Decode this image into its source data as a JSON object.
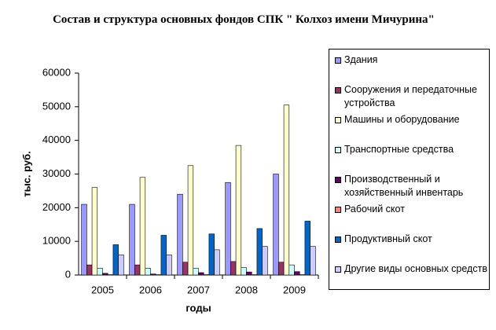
{
  "chart_data": {
    "type": "bar",
    "title": "Состав и структура  основных фондов СПК \"  Колхоз имени Мичурина\"",
    "y_label": "тыс. руб.",
    "x_label": "годы",
    "categories": [
      "2005",
      "2006",
      "2007",
      "2008",
      "2009"
    ],
    "series": [
      {
        "name": "Здания",
        "color": "#9999FF",
        "values": [
          21000,
          21000,
          24000,
          27500,
          30000
        ]
      },
      {
        "name": "Сооружения и передаточные устройства",
        "color": "#993366",
        "values": [
          3000,
          3000,
          3800,
          4000,
          3800
        ]
      },
      {
        "name": "Машины и оборудование",
        "color": "#FFFFCC",
        "values": [
          26000,
          29000,
          32500,
          38500,
          50500
        ]
      },
      {
        "name": "Транспортные средства",
        "color": "#CCFFFF",
        "values": [
          2000,
          2000,
          2000,
          2200,
          3000
        ]
      },
      {
        "name": "Производственный и хозяйственный инвентарь",
        "color": "#660066",
        "values": [
          500,
          300,
          700,
          900,
          1000
        ]
      },
      {
        "name": "Рабочий скот",
        "color": "#FF8080",
        "values": [
          100,
          100,
          100,
          100,
          100
        ]
      },
      {
        "name": "Продуктивный скот",
        "color": "#0066CC",
        "values": [
          9000,
          11800,
          12200,
          13800,
          16000
        ]
      },
      {
        "name": "Другие виды основных средств",
        "color": "#CCCCFF",
        "values": [
          6000,
          6000,
          7500,
          8500,
          8500
        ]
      }
    ],
    "ylim": [
      0,
      60000
    ],
    "yticks": [
      0,
      10000,
      20000,
      30000,
      40000,
      50000,
      60000
    ],
    "grid": false,
    "legend": "right"
  }
}
